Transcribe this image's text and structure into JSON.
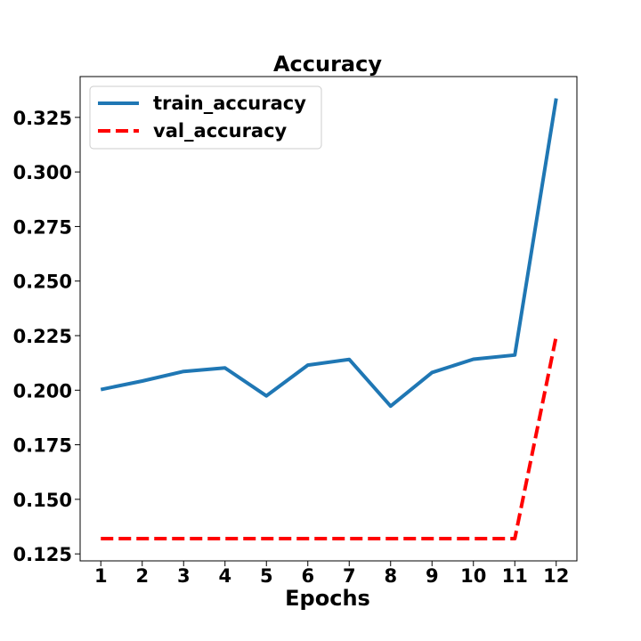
{
  "chart_data": {
    "type": "line",
    "title": "Accuracy",
    "xlabel": "Epochs",
    "ylabel": "",
    "x": [
      1,
      2,
      3,
      4,
      5,
      6,
      7,
      8,
      9,
      10,
      11,
      12
    ],
    "xticks": [
      "1",
      "2",
      "3",
      "4",
      "5",
      "6",
      "7",
      "8",
      "9",
      "10",
      "11",
      "12"
    ],
    "yticks": [
      "0.125",
      "0.150",
      "0.175",
      "0.200",
      "0.225",
      "0.250",
      "0.275",
      "0.300",
      "0.325"
    ],
    "ytick_values": [
      0.125,
      0.15,
      0.175,
      0.2,
      0.225,
      0.25,
      0.275,
      0.3,
      0.325
    ],
    "xlim": [
      0.5,
      12.5
    ],
    "ylim": [
      0.1218,
      0.3437
    ],
    "grid": false,
    "legend": "top-left",
    "series": [
      {
        "name": "train_accuracy",
        "color": "#1f77b4",
        "style": "solid",
        "values": [
          0.2003,
          0.2042,
          0.2086,
          0.2102,
          0.1974,
          0.2115,
          0.2141,
          0.1927,
          0.2081,
          0.2142,
          0.2161,
          0.3337
        ]
      },
      {
        "name": "val_accuracy",
        "color": "#ff0000",
        "style": "dashed",
        "values": [
          0.132,
          0.132,
          0.132,
          0.132,
          0.132,
          0.132,
          0.132,
          0.132,
          0.132,
          0.132,
          0.132,
          0.2247
        ]
      }
    ]
  }
}
